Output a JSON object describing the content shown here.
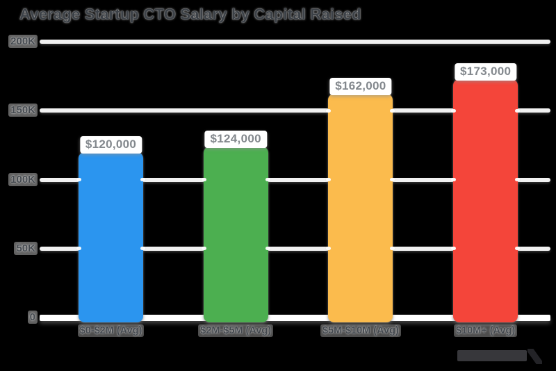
{
  "title": "Average Startup CTO Salary by Capital Raised",
  "chart_data": {
    "type": "bar",
    "title": "Average Startup CTO Salary by Capital Raised",
    "categories": [
      "$0-$2M (Avg)",
      "$2M-$5M (Avg)",
      "$5M-$10M (Avg)",
      "$10M+ (Avg)"
    ],
    "values": [
      120000,
      124000,
      162000,
      173000
    ],
    "value_labels": [
      "$120,000",
      "$124,000",
      "$162,000",
      "$173,000"
    ],
    "bar_colors": [
      "#2B95EF",
      "#4CAF50",
      "#FBBB4D",
      "#F4453A"
    ],
    "xlabel": "",
    "ylabel": "",
    "ylim": [
      0,
      200000
    ],
    "y_ticks": [
      {
        "label": "200K",
        "value": 200000
      },
      {
        "label": "150K",
        "value": 150000
      },
      {
        "label": "100K",
        "value": 100000
      },
      {
        "label": "50K",
        "value": 50000
      },
      {
        "label": "0",
        "value": 0
      }
    ],
    "grid": true,
    "legend_position": "none"
  },
  "colors": {
    "background": "#000000",
    "gridline": "#F1F1F1",
    "axis_text": "#43484E",
    "value_label_text": "#83888D",
    "value_label_bg": "#FFFFFF"
  },
  "watermark": {
    "icon": "brand-logo"
  }
}
